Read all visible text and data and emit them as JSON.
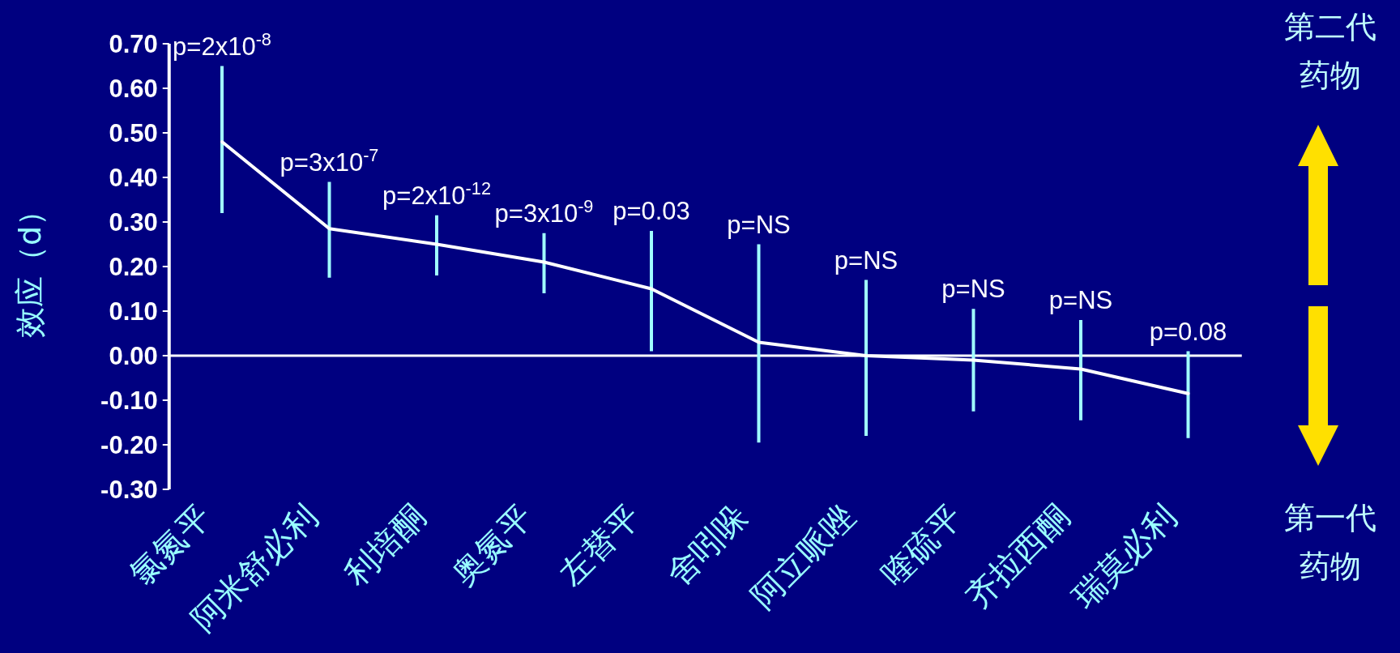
{
  "chart_data": {
    "type": "line",
    "ylabel": "效应（d）",
    "categories": [
      "氯氮平",
      "阿米舒必利",
      "利培酮",
      "奥氮平",
      "左替平",
      "舍吲哚",
      "阿立哌唑",
      "喹硫平",
      "齐拉西酮",
      "瑞莫必利"
    ],
    "series": [
      {
        "color": "#ffffff",
        "values": [
          0.48,
          0.285,
          0.25,
          0.21,
          0.15,
          0.03,
          0.0,
          -0.01,
          -0.03,
          -0.085
        ],
        "errors": [
          [
            0.32,
            0.65
          ],
          [
            0.175,
            0.39
          ],
          [
            0.18,
            0.315
          ],
          [
            0.14,
            0.275
          ],
          [
            0.01,
            0.28
          ],
          [
            -0.195,
            0.25
          ],
          [
            -0.18,
            0.17
          ],
          [
            -0.125,
            0.105
          ],
          [
            -0.145,
            0.08
          ],
          [
            -0.185,
            0.01
          ]
        ]
      }
    ],
    "ylim": [
      -0.3,
      0.7
    ],
    "yticks": [
      {
        "value": 0.7,
        "label": "0.70"
      },
      {
        "value": 0.6,
        "label": "0.60"
      },
      {
        "value": 0.5,
        "label": "0.50"
      },
      {
        "value": 0.4,
        "label": "0.40"
      },
      {
        "value": 0.3,
        "label": "0.30"
      },
      {
        "value": 0.2,
        "label": "0.20"
      },
      {
        "value": 0.1,
        "label": "0.10"
      },
      {
        "value": 0.0,
        "label": "0.00"
      },
      {
        "value": -0.1,
        "label": "-0.10"
      },
      {
        "value": -0.2,
        "label": "-0.20"
      },
      {
        "value": -0.3,
        "label": "-0.30"
      }
    ],
    "marker": "none",
    "line_style": "solid",
    "annotations": [
      "p=2x10$^{-8}$",
      "p=3x10$^{-7}$",
      "p=2x10$^{-12}$",
      "p=3x10$^{-9}$",
      "p=0.03",
      "p=NS",
      "p=NS",
      "p=NS",
      "p=NS",
      "p=0.08",
      "第二代药物",
      "第一代药物"
    ]
  }
}
